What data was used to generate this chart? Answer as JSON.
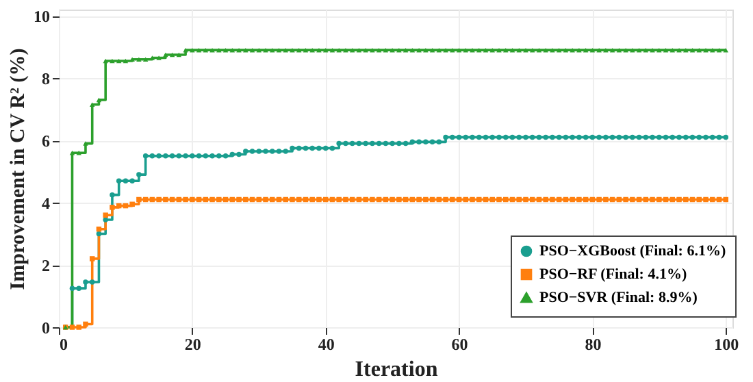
{
  "chart_data": {
    "type": "step",
    "xlabel": "Iteration",
    "ylabel": "Improvement in CV R² (%)",
    "x": [
      1,
      2,
      3,
      4,
      5,
      6,
      7,
      8,
      9,
      10,
      11,
      12,
      13,
      14,
      15,
      16,
      17,
      18,
      19,
      20,
      21,
      22,
      23,
      24,
      25,
      26,
      27,
      28,
      29,
      30,
      31,
      32,
      33,
      34,
      35,
      36,
      37,
      38,
      39,
      40,
      41,
      42,
      43,
      44,
      45,
      46,
      47,
      48,
      49,
      50,
      51,
      52,
      53,
      54,
      55,
      56,
      57,
      58,
      59,
      60,
      61,
      62,
      63,
      64,
      65,
      66,
      67,
      68,
      69,
      70,
      71,
      72,
      73,
      74,
      75,
      76,
      77,
      78,
      79,
      80,
      81,
      82,
      83,
      84,
      85,
      86,
      87,
      88,
      89,
      90,
      91,
      92,
      93,
      94,
      95,
      96,
      97,
      98,
      99,
      100
    ],
    "xlim": [
      0,
      101
    ],
    "xticks": [
      0,
      20,
      40,
      60,
      80,
      100
    ],
    "ylim": [
      0,
      10.2
    ],
    "yticks": [
      0,
      2,
      4,
      6,
      8,
      10
    ],
    "grid": true,
    "legend": "bottom right",
    "line_style": "solid",
    "series": [
      {
        "name": "PSO−XGBoost (Final: 6.1%)",
        "color": "#1a9e8f",
        "marker": "circle",
        "values": [
          0,
          1.25,
          1.25,
          1.45,
          1.45,
          3.0,
          3.45,
          4.25,
          4.7,
          4.7,
          4.7,
          4.9,
          5.5,
          5.5,
          5.5,
          5.5,
          5.5,
          5.5,
          5.5,
          5.5,
          5.5,
          5.5,
          5.5,
          5.5,
          5.5,
          5.55,
          5.55,
          5.65,
          5.65,
          5.65,
          5.65,
          5.65,
          5.65,
          5.65,
          5.75,
          5.75,
          5.75,
          5.75,
          5.75,
          5.75,
          5.75,
          5.9,
          5.9,
          5.9,
          5.9,
          5.9,
          5.9,
          5.9,
          5.9,
          5.9,
          5.9,
          5.9,
          5.95,
          5.95,
          5.95,
          5.95,
          5.95,
          6.1,
          6.1,
          6.1,
          6.1,
          6.1,
          6.1,
          6.1,
          6.1,
          6.1,
          6.1,
          6.1,
          6.1,
          6.1,
          6.1,
          6.1,
          6.1,
          6.1,
          6.1,
          6.1,
          6.1,
          6.1,
          6.1,
          6.1,
          6.1,
          6.1,
          6.1,
          6.1,
          6.1,
          6.1,
          6.1,
          6.1,
          6.1,
          6.1,
          6.1,
          6.1,
          6.1,
          6.1,
          6.1,
          6.1,
          6.1,
          6.1,
          6.1,
          6.1
        ]
      },
      {
        "name": "PSO−RF (Final: 4.1%)",
        "color": "#ff7f0e",
        "marker": "square",
        "values": [
          0,
          0,
          0,
          0.1,
          2.2,
          3.15,
          3.6,
          3.85,
          3.9,
          3.9,
          3.95,
          4.1,
          4.1,
          4.1,
          4.1,
          4.1,
          4.1,
          4.1,
          4.1,
          4.1,
          4.1,
          4.1,
          4.1,
          4.1,
          4.1,
          4.1,
          4.1,
          4.1,
          4.1,
          4.1,
          4.1,
          4.1,
          4.1,
          4.1,
          4.1,
          4.1,
          4.1,
          4.1,
          4.1,
          4.1,
          4.1,
          4.1,
          4.1,
          4.1,
          4.1,
          4.1,
          4.1,
          4.1,
          4.1,
          4.1,
          4.1,
          4.1,
          4.1,
          4.1,
          4.1,
          4.1,
          4.1,
          4.1,
          4.1,
          4.1,
          4.1,
          4.1,
          4.1,
          4.1,
          4.1,
          4.1,
          4.1,
          4.1,
          4.1,
          4.1,
          4.1,
          4.1,
          4.1,
          4.1,
          4.1,
          4.1,
          4.1,
          4.1,
          4.1,
          4.1,
          4.1,
          4.1,
          4.1,
          4.1,
          4.1,
          4.1,
          4.1,
          4.1,
          4.1,
          4.1,
          4.1,
          4.1,
          4.1,
          4.1,
          4.1,
          4.1,
          4.1,
          4.1,
          4.1,
          4.1
        ]
      },
      {
        "name": "PSO−SVR (Final: 8.9%)",
        "color": "#2ca02c",
        "marker": "triangle",
        "values": [
          0,
          5.6,
          5.6,
          5.9,
          7.15,
          7.3,
          8.55,
          8.55,
          8.55,
          8.55,
          8.6,
          8.6,
          8.6,
          8.65,
          8.65,
          8.75,
          8.75,
          8.75,
          8.9,
          8.9,
          8.9,
          8.9,
          8.9,
          8.9,
          8.9,
          8.9,
          8.9,
          8.9,
          8.9,
          8.9,
          8.9,
          8.9,
          8.9,
          8.9,
          8.9,
          8.9,
          8.9,
          8.9,
          8.9,
          8.9,
          8.9,
          8.9,
          8.9,
          8.9,
          8.9,
          8.9,
          8.9,
          8.9,
          8.9,
          8.9,
          8.9,
          8.9,
          8.9,
          8.9,
          8.9,
          8.9,
          8.9,
          8.9,
          8.9,
          8.9,
          8.9,
          8.9,
          8.9,
          8.9,
          8.9,
          8.9,
          8.9,
          8.9,
          8.9,
          8.9,
          8.9,
          8.9,
          8.9,
          8.9,
          8.9,
          8.9,
          8.9,
          8.9,
          8.9,
          8.9,
          8.9,
          8.9,
          8.9,
          8.9,
          8.9,
          8.9,
          8.9,
          8.9,
          8.9,
          8.9,
          8.9,
          8.9,
          8.9,
          8.9,
          8.9,
          8.9,
          8.9,
          8.9,
          8.9,
          8.9
        ]
      }
    ]
  }
}
